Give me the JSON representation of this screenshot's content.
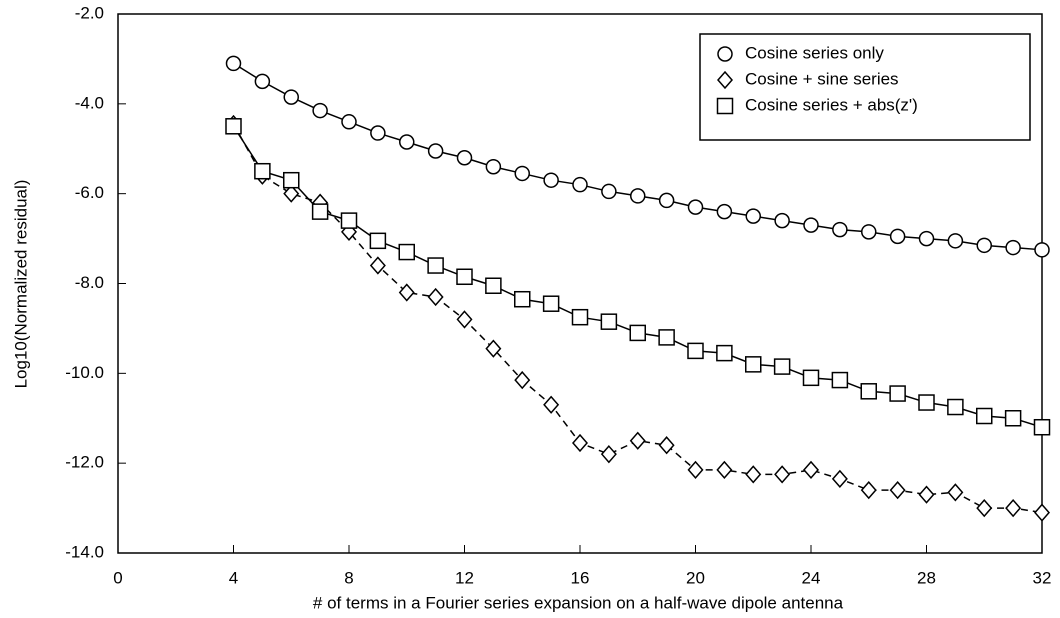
{
  "chart_data": {
    "type": "line",
    "x_label": "# of terms in a Fourier series expansion on a half-wave dipole antenna",
    "y_label": "Log10(Normalized residual)",
    "x": [
      4,
      5,
      6,
      7,
      8,
      9,
      10,
      11,
      12,
      13,
      14,
      15,
      16,
      17,
      18,
      19,
      20,
      21,
      22,
      23,
      24,
      25,
      26,
      27,
      28,
      29,
      30,
      31,
      32
    ],
    "series": [
      {
        "name": "Cosine series only",
        "color": "#000000",
        "marker": "circle",
        "dash": false,
        "values": [
          -3.1,
          -3.5,
          -3.85,
          -4.15,
          -4.4,
          -4.65,
          -4.85,
          -5.05,
          -5.2,
          -5.4,
          -5.55,
          -5.7,
          -5.8,
          -5.95,
          -6.05,
          -6.15,
          -6.3,
          -6.4,
          -6.5,
          -6.6,
          -6.7,
          -6.8,
          -6.85,
          -6.95,
          -7.0,
          -7.05,
          -7.15,
          -7.2,
          -7.25
        ]
      },
      {
        "name": "Cosine + sine series",
        "color": "#000000",
        "marker": "diamond",
        "dash": true,
        "values": [
          -4.45,
          -5.6,
          -6.0,
          -6.2,
          -6.85,
          -7.6,
          -8.2,
          -8.3,
          -8.8,
          -9.45,
          -10.15,
          -10.7,
          -11.55,
          -11.8,
          -11.5,
          -11.6,
          -12.15,
          -12.15,
          -12.25,
          -12.25,
          -12.15,
          -12.35,
          -12.6,
          -12.6,
          -12.7,
          -12.65,
          -13.0,
          -13.0,
          -13.1
        ]
      },
      {
        "name": "Cosine series + abs(z')",
        "color": "#000000",
        "marker": "square",
        "dash": false,
        "values": [
          -4.5,
          -5.5,
          -5.7,
          -6.4,
          -6.6,
          -7.05,
          -7.3,
          -7.6,
          -7.85,
          -8.05,
          -8.35,
          -8.45,
          -8.75,
          -8.85,
          -9.1,
          -9.2,
          -9.5,
          -9.55,
          -9.8,
          -9.85,
          -10.1,
          -10.15,
          -10.4,
          -10.45,
          -10.65,
          -10.75,
          -10.95,
          -11.0,
          -11.2
        ]
      }
    ],
    "xlim": [
      0,
      32
    ],
    "xticks": [
      0,
      4,
      8,
      12,
      16,
      20,
      24,
      28,
      32
    ],
    "ylim": [
      -14,
      -2
    ],
    "yticks": [
      {
        "value": -2,
        "label": "-2.0"
      },
      {
        "value": -4,
        "label": "-4.0"
      },
      {
        "value": -6,
        "label": "-6.0"
      },
      {
        "value": -8,
        "label": "-8.0"
      },
      {
        "value": -10,
        "label": "-10.0"
      },
      {
        "value": -12,
        "label": "-12.0"
      },
      {
        "value": -14,
        "label": "-14.0"
      }
    ],
    "legend": "upper right"
  }
}
